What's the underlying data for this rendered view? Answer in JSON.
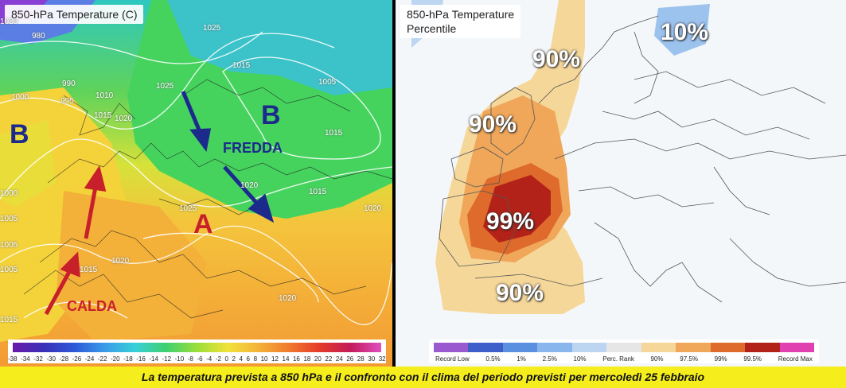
{
  "left_map": {
    "title": "850-hPa Temperature (C)",
    "isobars": [
      "1030",
      "980",
      "990",
      "995",
      "1010",
      "1025",
      "1020",
      "1000",
      "1015",
      "1015",
      "1025",
      "1005",
      "1025",
      "1015",
      "1020",
      "1015",
      "1020",
      "1020",
      "1015",
      "1020",
      "1000",
      "1005",
      "1015",
      "1005",
      "1005"
    ],
    "pressure_labels": {
      "low_west": "B",
      "low_north": "B",
      "high": "A"
    },
    "wind_labels": {
      "cold": "FREDDA",
      "warm": "CALDA"
    },
    "colorbar_ticks": [
      "-38",
      "-34",
      "-32",
      "-30",
      "-28",
      "-26",
      "-24",
      "-22",
      "-20",
      "-18",
      "-16",
      "-14",
      "-12",
      "-10",
      "-8",
      "-6",
      "-4",
      "-2",
      "0",
      "2",
      "4",
      "6",
      "8",
      "10",
      "12",
      "14",
      "16",
      "18",
      "20",
      "22",
      "24",
      "26",
      "28",
      "30",
      "32"
    ],
    "colors": {
      "cold_arrow": "#1c2a8c",
      "warm_arrow": "#c8202a"
    }
  },
  "right_map": {
    "title_line1": "850-hPa Temperature",
    "title_line2": "Percentile",
    "percentile_labels": {
      "north_sea": "90%",
      "uk": "90%",
      "iberia": "99%",
      "med": "90%",
      "scandinavia": "10%"
    },
    "colorbar_ticks": [
      "Record Low",
      "0.5%",
      "1%",
      "2.5%",
      "10%",
      "Perc. Rank",
      "90%",
      "97.5%",
      "99%",
      "99.5%",
      "Record Max"
    ],
    "colorbar_colors": [
      "#9b59d0",
      "#3e5fc9",
      "#5b8fe0",
      "#89b6ec",
      "#bcd6f2",
      "#e6e6e6",
      "#f6d79a",
      "#f0a75a",
      "#de6a2b",
      "#b32218",
      "#e040b0"
    ]
  },
  "caption": "La temperatura prevista a 850 hPa e il confronto con il clima del periodo previsti per mercoledì 25 febbraio"
}
